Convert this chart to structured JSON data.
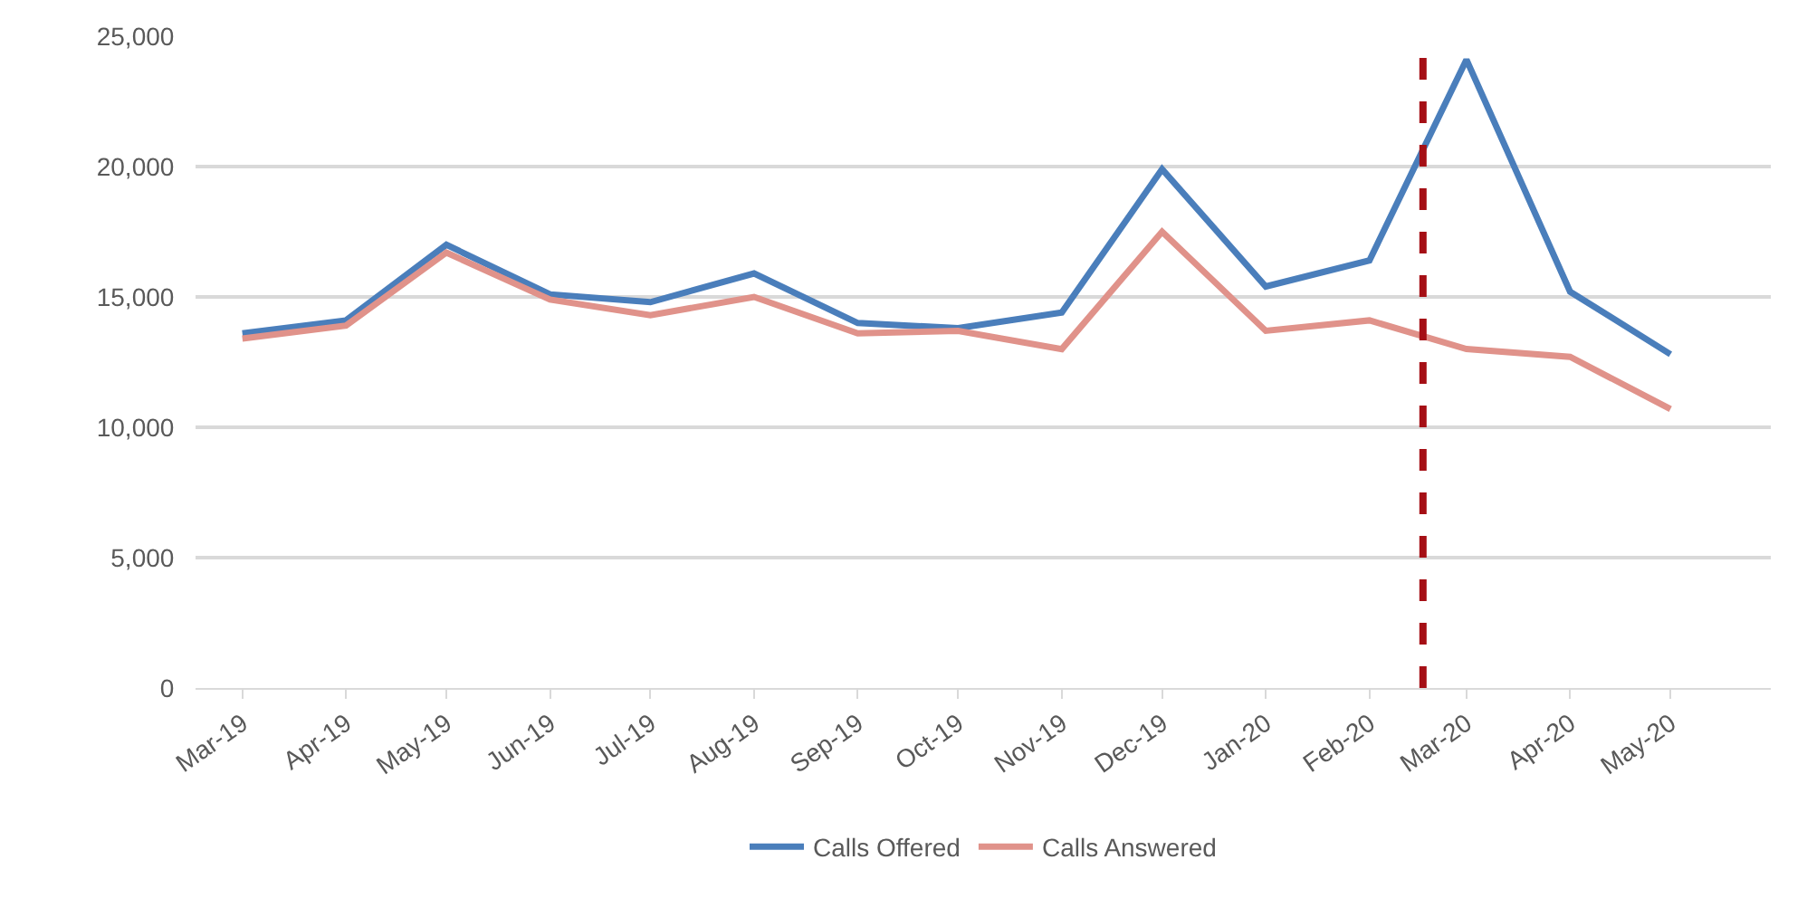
{
  "chart_data": {
    "type": "line",
    "x": [
      "2019-03",
      "2019-04",
      "2019-05",
      "2019-06",
      "2019-07",
      "2019-08",
      "2019-09",
      "2019-10",
      "2019-11",
      "2019-12",
      "2020-01",
      "2020-02",
      "2020-03",
      "2020-04",
      "2020-05"
    ],
    "series": [
      {
        "name": "Calls Offered",
        "color": "#4a7ebb",
        "values": [
          13600,
          14100,
          17000,
          15100,
          14800,
          15900,
          14000,
          13800,
          14400,
          19900,
          15400,
          16400,
          24100,
          15200,
          12800
        ]
      },
      {
        "name": "Calls Answered",
        "color": "#e0928a",
        "values": [
          13400,
          13900,
          16700,
          14900,
          14300,
          15000,
          13600,
          13700,
          13000,
          17500,
          13700,
          14100,
          13000,
          12700,
          10700
        ]
      }
    ],
    "xlim": [
      "2019-02-15",
      "2020-05-31"
    ],
    "xticks": [
      {
        "value": "2019-03",
        "label": "Mar-19"
      },
      {
        "value": "2019-04",
        "label": "Apr-19"
      },
      {
        "value": "2019-05",
        "label": "May-19"
      },
      {
        "value": "2019-06",
        "label": "Jun-19"
      },
      {
        "value": "2019-07",
        "label": "Jul-19"
      },
      {
        "value": "2019-08",
        "label": "Aug-19"
      },
      {
        "value": "2019-09",
        "label": "Sep-19"
      },
      {
        "value": "2019-10",
        "label": "Oct-19"
      },
      {
        "value": "2019-11",
        "label": "Nov-19"
      },
      {
        "value": "2019-12",
        "label": "Dec-19"
      },
      {
        "value": "2020-01",
        "label": "Jan-20"
      },
      {
        "value": "2020-02",
        "label": "Feb-20"
      },
      {
        "value": "2020-03",
        "label": "Mar-20"
      },
      {
        "value": "2020-04",
        "label": "Apr-20"
      },
      {
        "value": "2020-05",
        "label": "May-20"
      }
    ],
    "ylim": [
      0,
      25000
    ],
    "yticks": [
      {
        "value": 0,
        "label": "0"
      },
      {
        "value": 5000,
        "label": "5,000"
      },
      {
        "value": 10000,
        "label": "10,000"
      },
      {
        "value": 15000,
        "label": "15,000"
      },
      {
        "value": 20000,
        "label": "20,000"
      },
      {
        "value": 25000,
        "label": "25,000"
      }
    ],
    "ref_lines": [
      {
        "axis": "x",
        "value": "2020-02-17",
        "color": "#a50f15",
        "line_style": "dashed"
      }
    ],
    "grid": "y",
    "legend": "bottom",
    "marker": "none",
    "line_style": "solid"
  }
}
